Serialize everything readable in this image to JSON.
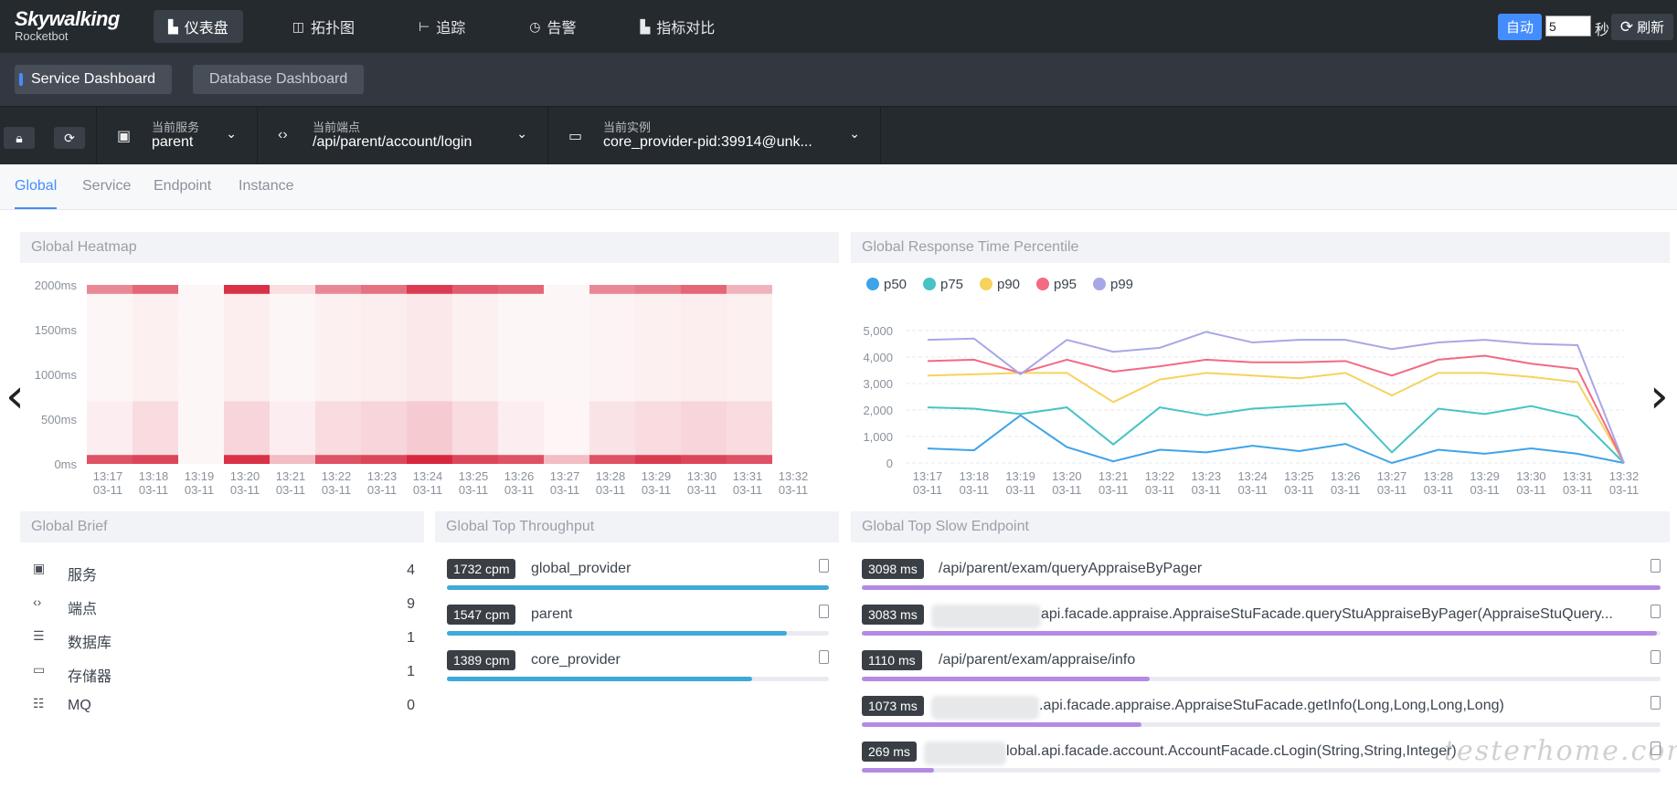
{
  "app": {
    "logo_line1": "Skywalking",
    "logo_line2": "Rocketbot"
  },
  "nav": [
    {
      "label": "仪表盘",
      "icon": "dashboard-icon",
      "active": true
    },
    {
      "label": "拓扑图",
      "icon": "topology-icon",
      "active": false
    },
    {
      "label": "追踪",
      "icon": "trace-icon",
      "active": false
    },
    {
      "label": "告警",
      "icon": "alarm-icon",
      "active": false
    },
    {
      "label": "指标对比",
      "icon": "compare-icon",
      "active": false
    }
  ],
  "refresh": {
    "auto_label": "自动",
    "seconds": "5",
    "seconds_unit": "秒",
    "refresh_label": "刷新"
  },
  "dashboards": [
    {
      "label": "Service Dashboard",
      "active": true
    },
    {
      "label": "Database Dashboard",
      "active": false
    }
  ],
  "selectors": {
    "service": {
      "title": "当前服务",
      "value": "parent"
    },
    "endpoint": {
      "title": "当前端点",
      "value": "/api/parent/account/login"
    },
    "instance": {
      "title": "当前实例",
      "value": "core_provider-pid:39914@unk..."
    }
  },
  "tabs": [
    "Global",
    "Service",
    "Endpoint",
    "Instance"
  ],
  "heatmap": {
    "title": "Global Heatmap",
    "y_ticks": [
      "2000ms",
      "1500ms",
      "1000ms",
      "500ms",
      "0ms"
    ],
    "x_times": [
      "13:17",
      "13:18",
      "13:19",
      "13:20",
      "13:21",
      "13:22",
      "13:23",
      "13:24",
      "13:25",
      "13:26",
      "13:27",
      "13:28",
      "13:29",
      "13:30",
      "13:31",
      "13:32"
    ],
    "x_date": "03-11",
    "color": "#d7263d"
  },
  "response_time": {
    "title": "Global Response Time Percentile",
    "legend": [
      "p50",
      "p75",
      "p90",
      "p95",
      "p99"
    ],
    "colors": [
      "#3fa3e8",
      "#46c3c6",
      "#f6d25e",
      "#f26a83",
      "#a8a7e6"
    ],
    "y_ticks": [
      "5,000",
      "4,000",
      "3,000",
      "2,000",
      "1,000",
      "0"
    ]
  },
  "chart_data": {
    "type": "line",
    "title": "Global Response Time Percentile",
    "x": [
      "13:17\n03-11",
      "13:18\n03-11",
      "13:19\n03-11",
      "13:20\n03-11",
      "13:21\n03-11",
      "13:22\n03-11",
      "13:23\n03-11",
      "13:24\n03-11",
      "13:25\n03-11",
      "13:26\n03-11",
      "13:27\n03-11",
      "13:28\n03-11",
      "13:29\n03-11",
      "13:30\n03-11",
      "13:31\n03-11",
      "13:32\n03-11"
    ],
    "ylim": [
      0,
      5000
    ],
    "series": [
      {
        "name": "p50",
        "values": [
          550,
          480,
          1800,
          600,
          60,
          500,
          400,
          650,
          450,
          720,
          0,
          500,
          350,
          550,
          350,
          0
        ]
      },
      {
        "name": "p75",
        "values": [
          2100,
          2050,
          1850,
          2100,
          700,
          2100,
          1800,
          2050,
          2150,
          2250,
          400,
          2050,
          1850,
          2150,
          1750,
          0
        ]
      },
      {
        "name": "p90",
        "values": [
          3300,
          3350,
          3400,
          3400,
          2300,
          3150,
          3400,
          3300,
          3200,
          3400,
          2550,
          3400,
          3400,
          3250,
          3050,
          0
        ]
      },
      {
        "name": "p95",
        "values": [
          3850,
          3900,
          3400,
          3900,
          3450,
          3650,
          3900,
          3800,
          3800,
          3850,
          3300,
          3900,
          4050,
          3750,
          3550,
          0
        ]
      },
      {
        "name": "p99",
        "values": [
          4650,
          4700,
          3350,
          4650,
          4200,
          4350,
          4950,
          4550,
          4650,
          4650,
          4300,
          4550,
          4650,
          4500,
          4450,
          0
        ]
      }
    ],
    "legend_position": "top-left",
    "grid": true
  },
  "brief": {
    "title": "Global Brief",
    "items": [
      {
        "label": "服务",
        "value": "4",
        "icon": "service-icon"
      },
      {
        "label": "端点",
        "value": "9",
        "icon": "endpoint-icon"
      },
      {
        "label": "数据库",
        "value": "1",
        "icon": "database-icon"
      },
      {
        "label": "存储器",
        "value": "1",
        "icon": "cache-icon"
      },
      {
        "label": "MQ",
        "value": "0",
        "icon": "mq-icon"
      }
    ]
  },
  "throughput": {
    "title": "Global Top Throughput",
    "color": "#3fa9d8",
    "items": [
      {
        "badge": "1732 cpm",
        "label": "global_provider",
        "fraction": 1.0
      },
      {
        "badge": "1547 cpm",
        "label": "parent",
        "fraction": 0.89
      },
      {
        "badge": "1389 cpm",
        "label": "core_provider",
        "fraction": 0.8
      }
    ]
  },
  "slow": {
    "title": "Global Top Slow Endpoint",
    "color": "#b48ae4",
    "items": [
      {
        "badge": "3098 ms",
        "label": "/api/parent/exam/queryAppraiseByPager",
        "fraction": 1.0,
        "blurred": false
      },
      {
        "badge": "3083 ms",
        "label": "api.facade.appraise.AppraiseStuFacade.queryStuAppraiseByPager(AppraiseStuQuery...",
        "fraction": 0.995,
        "blurred": true
      },
      {
        "badge": "1110 ms",
        "label": "/api/parent/exam/appraise/info",
        "fraction": 0.36,
        "blurred": false
      },
      {
        "badge": "1073 ms",
        "label": ".api.facade.appraise.AppraiseStuFacade.getInfo(Long,Long,Long,Long)",
        "fraction": 0.35,
        "blurred": true
      },
      {
        "badge": "269 ms",
        "label": "lobal.api.facade.account.AccountFacade.cLogin(String,String,Integer)",
        "fraction": 0.09,
        "blurred": true
      }
    ]
  },
  "watermark": "testerhome.com"
}
